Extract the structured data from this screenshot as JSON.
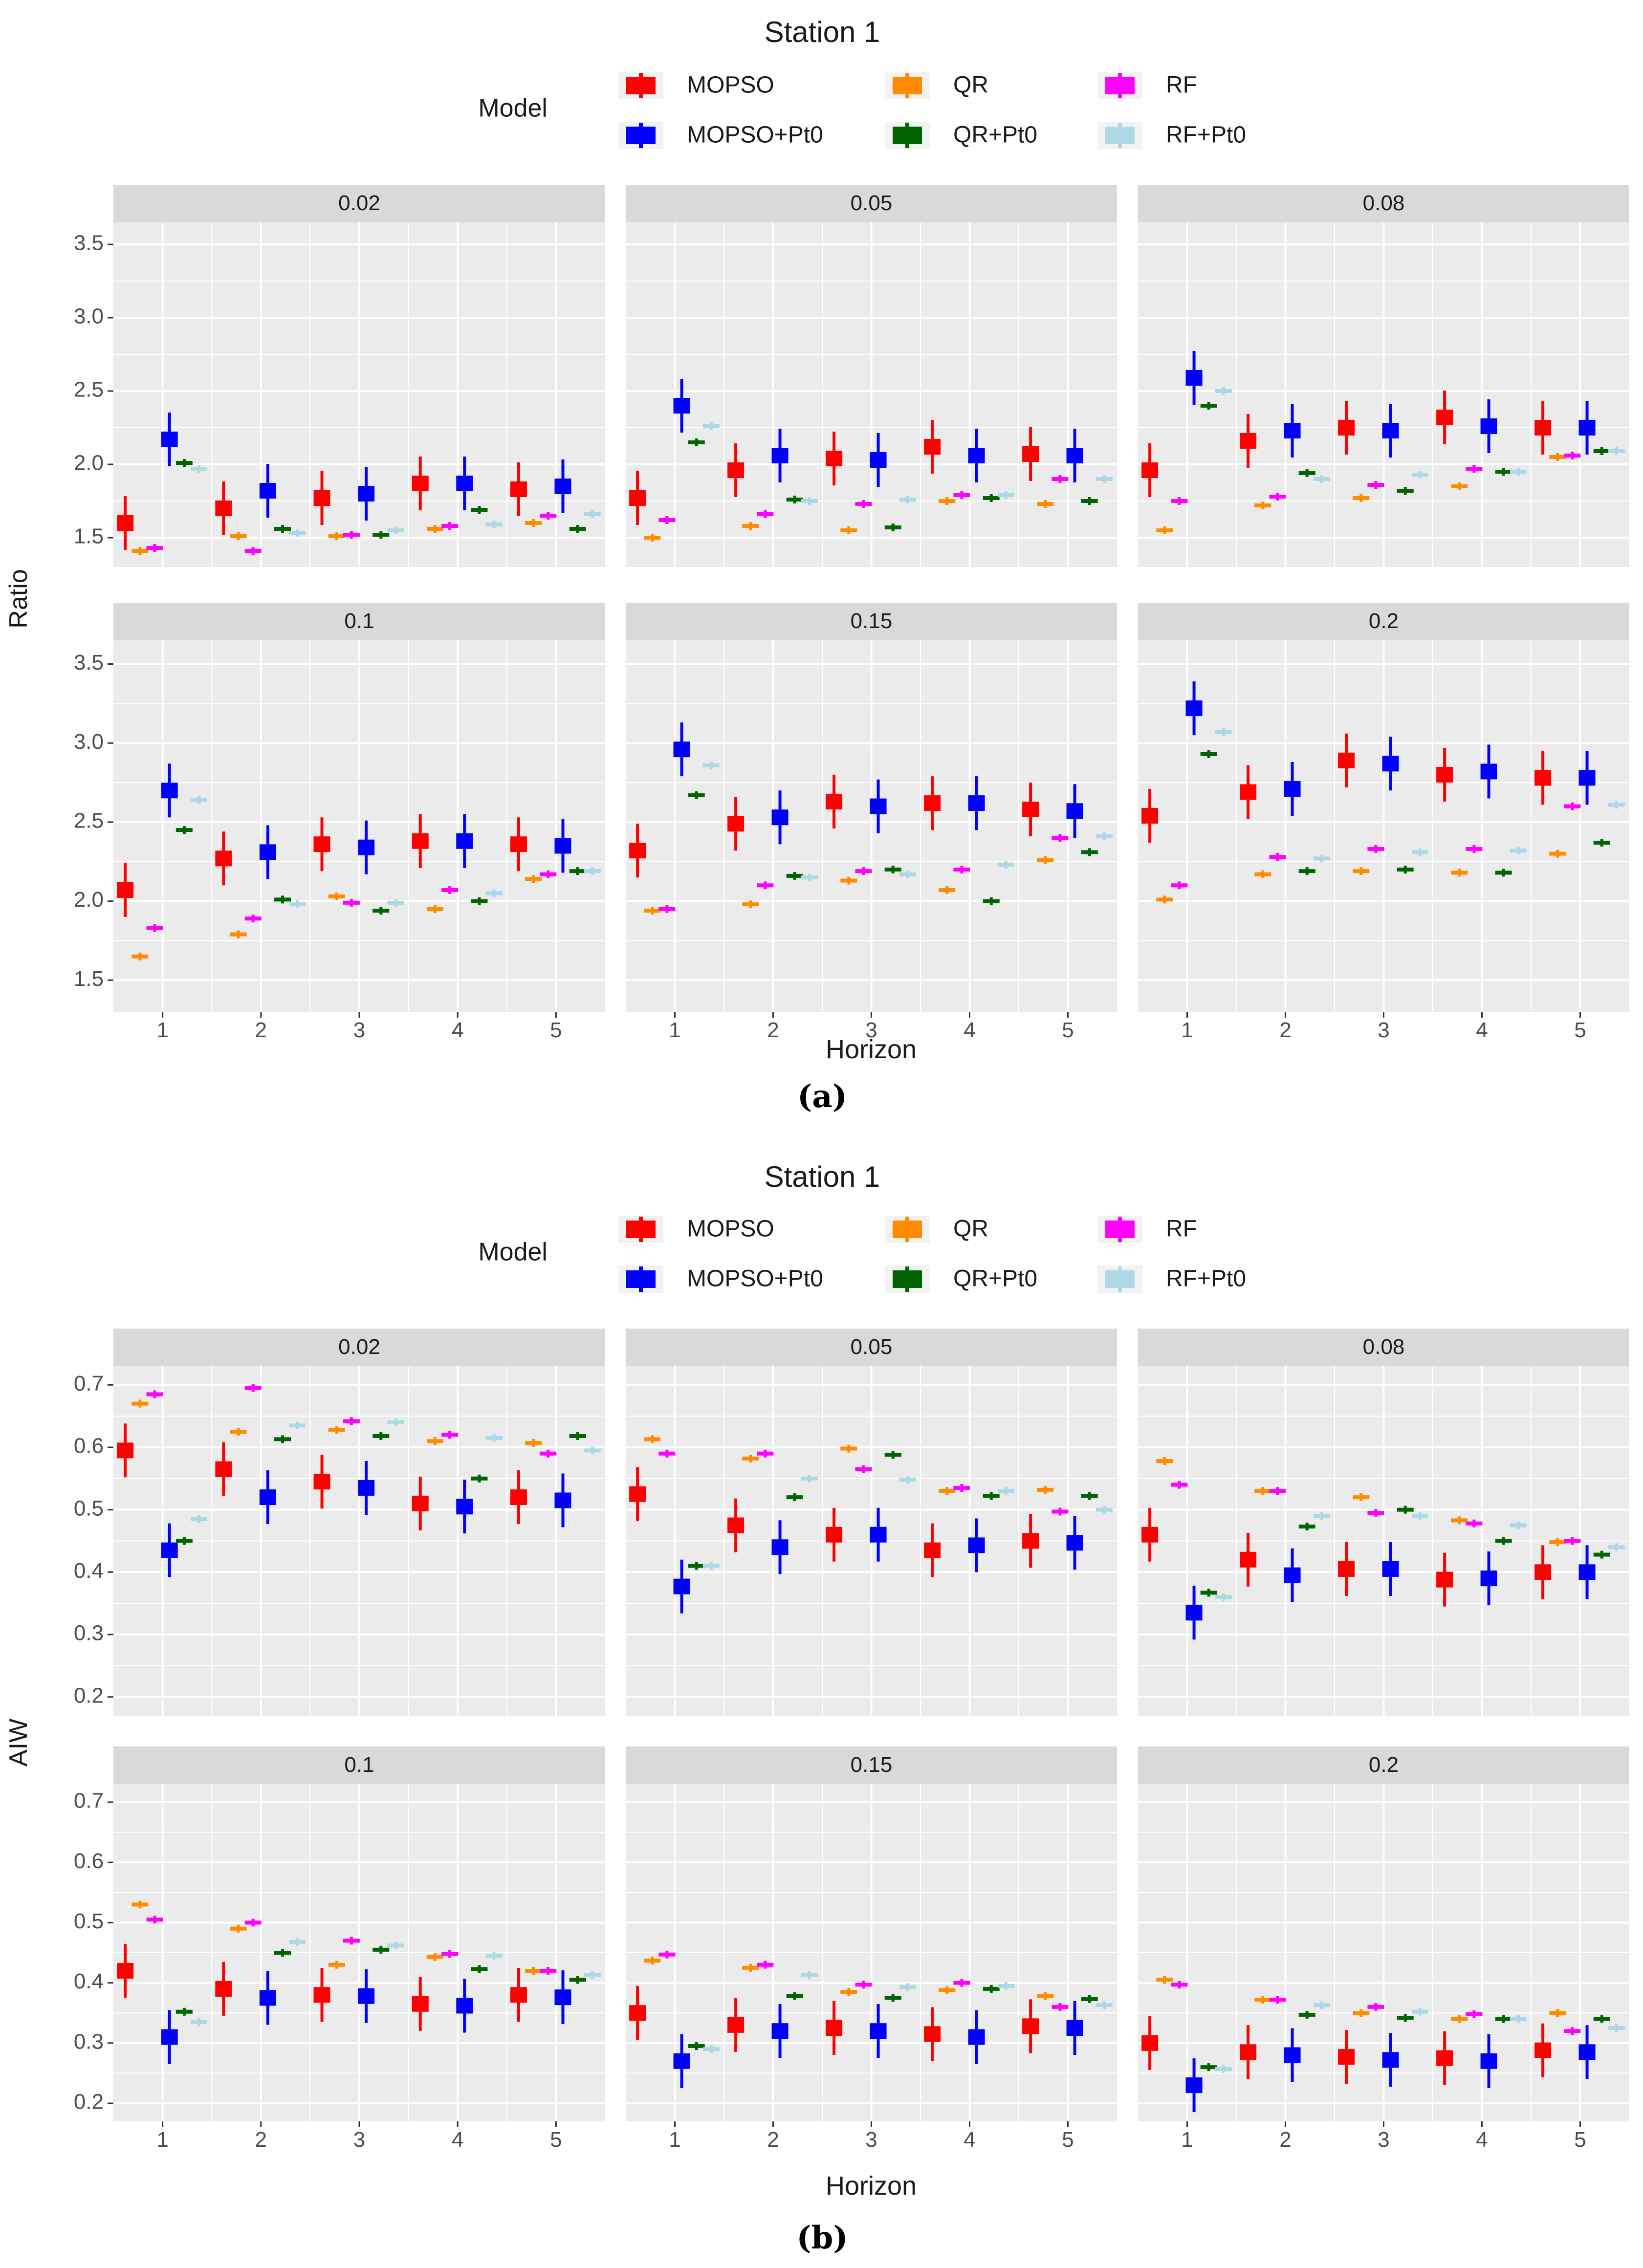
{
  "colors": {
    "MOPSO": "#ff0000",
    "MOPSO+Pt0": "#0000ff",
    "QR": "#ff8c00",
    "QR+Pt0": "#006400",
    "RF": "#ff00ff",
    "RF+Pt0": "#add8e6",
    "panel_bg": "#ebebeb",
    "strip_bg": "#d9d9d9",
    "grid": "#ffffff"
  },
  "chart_data": [
    {
      "type": "boxplot",
      "caption": "(a)",
      "title": "Station 1",
      "legend_title": "Model",
      "legend": [
        "MOPSO",
        "QR",
        "RF",
        "MOPSO+Pt0",
        "QR+Pt0",
        "RF+Pt0"
      ],
      "xlabel": "Horizon",
      "ylabel": "Ratio",
      "x_ticks": [
        "1",
        "2",
        "3",
        "4",
        "5"
      ],
      "y_ticks": [
        "1.5",
        "2.0",
        "2.5",
        "3.0",
        "3.5"
      ],
      "ylim": [
        1.3,
        3.65
      ],
      "series_order": [
        "MOPSO",
        "QR",
        "RF",
        "MOPSO+Pt0",
        "QR+Pt0",
        "RF+Pt0"
      ],
      "panels": [
        {
          "label": "0.02",
          "data": {
            "MOPSO": [
              1.6,
              1.7,
              1.77,
              1.87,
              1.83
            ],
            "QR": [
              1.41,
              1.51,
              1.51,
              1.56,
              1.6
            ],
            "RF": [
              1.43,
              1.41,
              1.52,
              1.58,
              1.65
            ],
            "MOPSO+Pt0": [
              2.17,
              1.82,
              1.8,
              1.87,
              1.85
            ],
            "QR+Pt0": [
              2.01,
              1.56,
              1.52,
              1.69,
              1.56
            ],
            "RF+Pt0": [
              1.97,
              1.53,
              1.55,
              1.59,
              1.66
            ]
          }
        },
        {
          "label": "0.05",
          "data": {
            "MOPSO": [
              1.77,
              1.96,
              2.04,
              2.12,
              2.07
            ],
            "QR": [
              1.5,
              1.58,
              1.55,
              1.75,
              1.73
            ],
            "RF": [
              1.62,
              1.66,
              1.73,
              1.79,
              1.9
            ],
            "MOPSO+Pt0": [
              2.4,
              2.06,
              2.03,
              2.06,
              2.06
            ],
            "QR+Pt0": [
              2.15,
              1.76,
              1.57,
              1.77,
              1.75
            ],
            "RF+Pt0": [
              2.26,
              1.75,
              1.76,
              1.79,
              1.9
            ]
          }
        },
        {
          "label": "0.08",
          "data": {
            "MOPSO": [
              1.96,
              2.16,
              2.25,
              2.32,
              2.25
            ],
            "QR": [
              1.55,
              1.72,
              1.77,
              1.85,
              2.05
            ],
            "RF": [
              1.75,
              1.78,
              1.86,
              1.97,
              2.06
            ],
            "MOPSO+Pt0": [
              2.59,
              2.23,
              2.23,
              2.26,
              2.25
            ],
            "QR+Pt0": [
              2.4,
              1.94,
              1.82,
              1.95,
              2.09
            ],
            "RF+Pt0": [
              2.5,
              1.9,
              1.93,
              1.95,
              2.09
            ]
          }
        },
        {
          "label": "0.1",
          "data": {
            "MOPSO": [
              2.07,
              2.27,
              2.36,
              2.38,
              2.36
            ],
            "QR": [
              1.65,
              1.79,
              2.03,
              1.95,
              2.14
            ],
            "RF": [
              1.83,
              1.89,
              1.99,
              2.07,
              2.17
            ],
            "MOPSO+Pt0": [
              2.7,
              2.31,
              2.34,
              2.38,
              2.35
            ],
            "QR+Pt0": [
              2.45,
              2.01,
              1.94,
              2.0,
              2.19
            ],
            "RF+Pt0": [
              2.64,
              1.98,
              1.99,
              2.05,
              2.19
            ]
          }
        },
        {
          "label": "0.15",
          "data": {
            "MOPSO": [
              2.32,
              2.49,
              2.63,
              2.62,
              2.58
            ],
            "QR": [
              1.94,
              1.98,
              2.13,
              2.07,
              2.26
            ],
            "RF": [
              1.95,
              2.1,
              2.19,
              2.2,
              2.4
            ],
            "MOPSO+Pt0": [
              2.96,
              2.53,
              2.6,
              2.62,
              2.57
            ],
            "QR+Pt0": [
              2.67,
              2.16,
              2.2,
              2.0,
              2.31
            ],
            "RF+Pt0": [
              2.86,
              2.15,
              2.17,
              2.23,
              2.41
            ]
          }
        },
        {
          "label": "0.2",
          "data": {
            "MOPSO": [
              2.54,
              2.69,
              2.89,
              2.8,
              2.78
            ],
            "QR": [
              2.01,
              2.17,
              2.19,
              2.18,
              2.3
            ],
            "RF": [
              2.1,
              2.28,
              2.33,
              2.33,
              2.6
            ],
            "MOPSO+Pt0": [
              3.22,
              2.71,
              2.87,
              2.82,
              2.78
            ],
            "QR+Pt0": [
              2.93,
              2.19,
              2.2,
              2.18,
              2.37
            ],
            "RF+Pt0": [
              3.07,
              2.27,
              2.31,
              2.32,
              2.61
            ]
          }
        }
      ]
    },
    {
      "type": "boxplot",
      "caption": "(b)",
      "title": "Station 1",
      "legend_title": "Model",
      "legend": [
        "MOPSO",
        "QR",
        "RF",
        "MOPSO+Pt0",
        "QR+Pt0",
        "RF+Pt0"
      ],
      "xlabel": "Horizon",
      "ylabel": "AIW",
      "x_ticks": [
        "1",
        "2",
        "3",
        "4",
        "5"
      ],
      "y_ticks": [
        "0.2",
        "0.3",
        "0.4",
        "0.5",
        "0.6",
        "0.7"
      ],
      "ylim": [
        0.17,
        0.73
      ],
      "series_order": [
        "MOPSO",
        "QR",
        "RF",
        "MOPSO+Pt0",
        "QR+Pt0",
        "RF+Pt0"
      ],
      "panels": [
        {
          "label": "0.02",
          "data": {
            "MOPSO": [
              0.595,
              0.565,
              0.545,
              0.51,
              0.52
            ],
            "QR": [
              0.67,
              0.625,
              0.628,
              0.61,
              0.607
            ],
            "RF": [
              0.685,
              0.695,
              0.642,
              0.62,
              0.59
            ],
            "MOPSO+Pt0": [
              0.435,
              0.52,
              0.535,
              0.505,
              0.515
            ],
            "QR+Pt0": [
              0.45,
              0.613,
              0.618,
              0.55,
              0.618
            ],
            "RF+Pt0": [
              0.485,
              0.635,
              0.64,
              0.615,
              0.595
            ]
          }
        },
        {
          "label": "0.05",
          "data": {
            "MOPSO": [
              0.525,
              0.475,
              0.46,
              0.435,
              0.45
            ],
            "QR": [
              0.613,
              0.582,
              0.598,
              0.53,
              0.532
            ],
            "RF": [
              0.59,
              0.59,
              0.565,
              0.535,
              0.497
            ],
            "MOPSO+Pt0": [
              0.377,
              0.44,
              0.46,
              0.443,
              0.447
            ],
            "QR+Pt0": [
              0.41,
              0.52,
              0.588,
              0.522,
              0.522
            ],
            "RF+Pt0": [
              0.41,
              0.55,
              0.548,
              0.53,
              0.5
            ]
          }
        },
        {
          "label": "0.08",
          "data": {
            "MOPSO": [
              0.46,
              0.42,
              0.405,
              0.388,
              0.4
            ],
            "QR": [
              0.578,
              0.53,
              0.52,
              0.483,
              0.448
            ],
            "RF": [
              0.54,
              0.53,
              0.495,
              0.478,
              0.45
            ],
            "MOPSO+Pt0": [
              0.335,
              0.395,
              0.405,
              0.39,
              0.4
            ],
            "QR+Pt0": [
              0.367,
              0.473,
              0.5,
              0.45,
              0.428
            ],
            "RF+Pt0": [
              0.36,
              0.49,
              0.49,
              0.475,
              0.44
            ]
          }
        },
        {
          "label": "0.1",
          "data": {
            "MOPSO": [
              0.42,
              0.39,
              0.38,
              0.365,
              0.38
            ],
            "QR": [
              0.53,
              0.49,
              0.43,
              0.443,
              0.42
            ],
            "RF": [
              0.505,
              0.5,
              0.47,
              0.448,
              0.42
            ],
            "MOPSO+Pt0": [
              0.31,
              0.375,
              0.378,
              0.362,
              0.376
            ],
            "QR+Pt0": [
              0.352,
              0.45,
              0.455,
              0.423,
              0.405
            ],
            "RF+Pt0": [
              0.335,
              0.468,
              0.462,
              0.445,
              0.413
            ]
          }
        },
        {
          "label": "0.15",
          "data": {
            "MOPSO": [
              0.35,
              0.33,
              0.325,
              0.315,
              0.328
            ],
            "QR": [
              0.437,
              0.425,
              0.385,
              0.388,
              0.378
            ],
            "RF": [
              0.447,
              0.43,
              0.397,
              0.4,
              0.36
            ],
            "MOPSO+Pt0": [
              0.27,
              0.32,
              0.32,
              0.31,
              0.325
            ],
            "QR+Pt0": [
              0.295,
              0.378,
              0.375,
              0.39,
              0.373
            ],
            "RF+Pt0": [
              0.29,
              0.413,
              0.393,
              0.395,
              0.363
            ]
          }
        },
        {
          "label": "0.2",
          "data": {
            "MOPSO": [
              0.3,
              0.285,
              0.277,
              0.275,
              0.288
            ],
            "QR": [
              0.405,
              0.372,
              0.35,
              0.34,
              0.35
            ],
            "RF": [
              0.397,
              0.372,
              0.36,
              0.348,
              0.32
            ],
            "MOPSO+Pt0": [
              0.23,
              0.28,
              0.272,
              0.27,
              0.285
            ],
            "QR+Pt0": [
              0.26,
              0.347,
              0.342,
              0.34,
              0.34
            ],
            "RF+Pt0": [
              0.257,
              0.363,
              0.352,
              0.34,
              0.325
            ]
          }
        }
      ]
    }
  ]
}
